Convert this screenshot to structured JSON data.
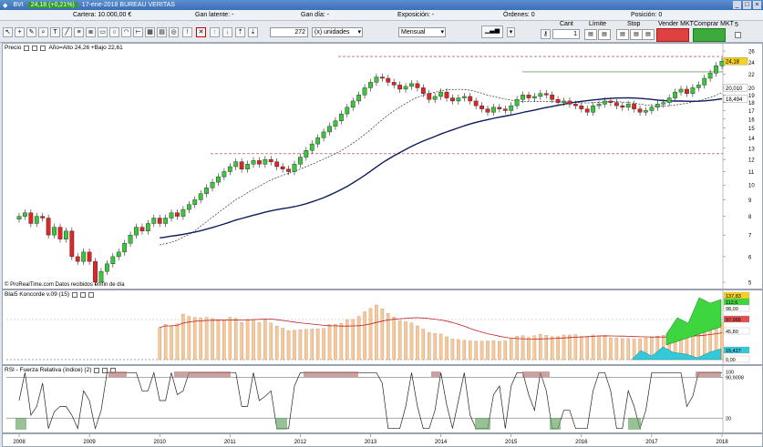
{
  "titlebar": {
    "symbol": "BVI",
    "price_badge": "24,18 (+0,21%)",
    "date_title": "17-ene-2018 BUREAU VERITAS"
  },
  "infobar": {
    "cartera": "Cartera: 10.000,00 €",
    "gan_latente": "Gan latente: -",
    "gan_dia": "Gan día: -",
    "exposicion": "Exposición: -",
    "ordenes": "Órdenes: 0",
    "posicion": "Posición: 0"
  },
  "toolbar": {
    "quantity_value": "272",
    "units_select": "(x) unidades",
    "period_select": "Mensual",
    "cant_label": "Cant",
    "cant_value": "1",
    "limite_label": "Límite",
    "stop_label": "Stop",
    "vender_label": "Vender MKT",
    "comprar_label": "Comprar MKT",
    "right_value": "5"
  },
  "price_panel": {
    "header": "Precio",
    "header_stats": "Año=Alto 24,26 +Bajo 22,61",
    "footer": "© ProRealTime.com  Datos recibidos en fin de día",
    "y_ticks": [
      "26",
      "24",
      "22",
      "20",
      "19",
      "18",
      "17",
      "16",
      "15",
      "14",
      "13",
      "12",
      "11",
      "10",
      "9",
      "8",
      "7",
      "6",
      "5"
    ],
    "badges": [
      {
        "text": "24,18",
        "color": "#f5d020"
      },
      {
        "text": "20,010",
        "color": "#ffffff"
      },
      {
        "text": "18,494",
        "color": "#ffffff"
      }
    ]
  },
  "konc_panel": {
    "header": "Blai5 Koncorde v.09 (15)",
    "y_labels": [
      "137,83",
      "112,6",
      "98,00",
      "97,066",
      "45,80",
      "15,427",
      "0,00"
    ]
  },
  "rsi_panel": {
    "header": "RSI - Fuerza Relativa (índice) (2)",
    "y_labels": [
      "100",
      "90,9008",
      "20"
    ]
  },
  "x_axis": {
    "years": [
      "2008",
      "2009",
      "2010",
      "2011",
      "2012",
      "2013",
      "2014",
      "2015",
      "2016",
      "2017",
      "2018"
    ]
  },
  "chart_data": {
    "type": "candlestick",
    "title": "BUREAU VERITAS",
    "period": "Mensual",
    "y_range": [
      5,
      26
    ],
    "series_monthly_close_approx": [
      {
        "year": "2008",
        "values": [
          8.0,
          8.2,
          7.6,
          8.0,
          7.9,
          7.0,
          7.4,
          6.8,
          7.2,
          6.0,
          5.8,
          6.2
        ]
      },
      {
        "year": "2009",
        "values": [
          5.8,
          5.0,
          5.4,
          5.7,
          6.0,
          6.2,
          6.6,
          7.0,
          7.4,
          7.2,
          7.6,
          7.9
        ]
      },
      {
        "year": "2010",
        "values": [
          7.6,
          7.9,
          8.2,
          8.0,
          8.4,
          8.7,
          9.0,
          9.4,
          9.8,
          10.2,
          10.6,
          11.0
        ]
      },
      {
        "year": "2011",
        "values": [
          11.4,
          11.8,
          11.2,
          11.6,
          11.9,
          11.6,
          12.0,
          11.8,
          11.4,
          11.2,
          11.0,
          11.6
        ]
      },
      {
        "year": "2012",
        "values": [
          12.2,
          12.8,
          13.4,
          14.0,
          14.6,
          15.2,
          15.8,
          16.6,
          17.4,
          18.2,
          19.0,
          20.0
        ]
      },
      {
        "year": "2013",
        "values": [
          20.8,
          21.6,
          21.4,
          20.8,
          20.4,
          19.8,
          20.2,
          20.6,
          20.0,
          19.2,
          18.4,
          18.8
        ]
      },
      {
        "year": "2014",
        "values": [
          19.4,
          18.6,
          18.2,
          18.6,
          18.8,
          18.2,
          17.6,
          17.2,
          16.8,
          17.4,
          17.2,
          17.0
        ]
      },
      {
        "year": "2015",
        "values": [
          17.6,
          18.4,
          19.0,
          18.6,
          18.8,
          19.2,
          19.0,
          18.4,
          18.0,
          18.2,
          17.8,
          17.6
        ]
      },
      {
        "year": "2016",
        "values": [
          17.2,
          16.8,
          17.6,
          17.8,
          18.2,
          18.0,
          17.6,
          17.4,
          17.8,
          17.2,
          16.8,
          17.0
        ]
      },
      {
        "year": "2017",
        "values": [
          17.4,
          17.8,
          18.0,
          18.6,
          19.4,
          19.8,
          19.2,
          20.0,
          20.4,
          21.4,
          22.2,
          23.4
        ]
      },
      {
        "year": "2018",
        "values": [
          24.18
        ]
      }
    ],
    "moving_averages": [
      "dashed short MA",
      "solid navy long MA"
    ],
    "horizontal_lines": [
      25.0,
      12.5
    ]
  }
}
